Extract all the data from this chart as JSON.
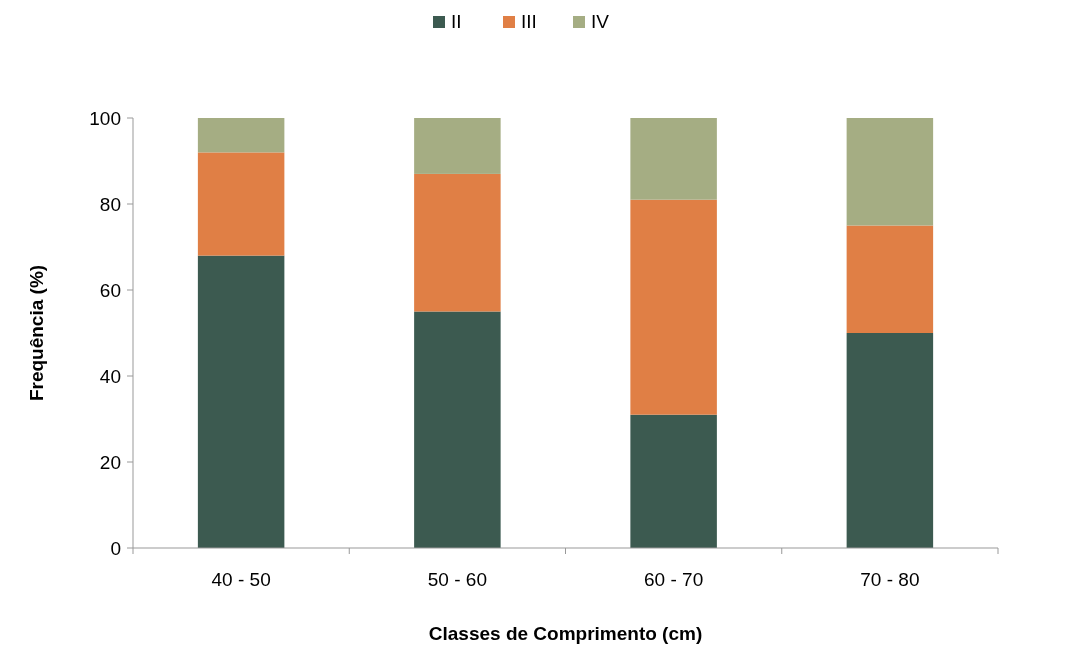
{
  "chart_data": {
    "type": "bar",
    "stacked": true,
    "xlabel": "Classes de Comprimento (cm)",
    "ylabel": "Frequência (%)",
    "categories": [
      "40 - 50",
      "50 - 60",
      "60 - 70",
      "70 - 80"
    ],
    "series": [
      {
        "name": "II",
        "color": "#3c5a50",
        "values": [
          68,
          55,
          31,
          50
        ]
      },
      {
        "name": "III",
        "color": "#e07f45",
        "values": [
          24,
          32,
          50,
          25
        ]
      },
      {
        "name": "IV",
        "color": "#a5ad83",
        "values": [
          8,
          13,
          19,
          25
        ]
      }
    ],
    "ylim": [
      0,
      100
    ],
    "yticks": [
      0,
      20,
      40,
      60,
      80,
      100
    ],
    "grid": false,
    "legend": "top"
  }
}
